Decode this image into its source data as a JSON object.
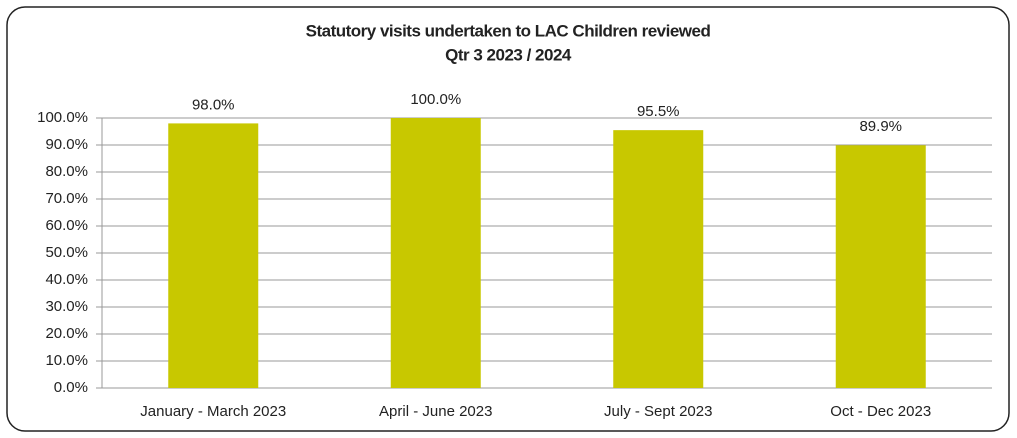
{
  "chart_data": {
    "type": "bar",
    "title": [
      "Statutory visits undertaken to LAC Children reviewed",
      "Qtr  3 2023 / 2024"
    ],
    "categories": [
      "January - March 2023",
      "April - June 2023",
      "July - Sept 2023",
      "Oct - Dec 2023"
    ],
    "values": [
      98,
      100,
      95.5,
      89.9
    ],
    "value_labels": [
      "98.0%",
      "100.0%",
      "95.5%",
      "89.9%"
    ],
    "color": "#c8c800",
    "ylim": [
      0,
      100
    ],
    "yticks": [
      {
        "value": 0,
        "label": "0.0%"
      },
      {
        "value": 10,
        "label": "10.0%"
      },
      {
        "value": 20,
        "label": "20.0%"
      },
      {
        "value": 30,
        "label": "30.0%"
      },
      {
        "value": 40,
        "label": "40.0%"
      },
      {
        "value": 50,
        "label": "50.0%"
      },
      {
        "value": 60,
        "label": "60.0%"
      },
      {
        "value": 70,
        "label": "70.0%"
      },
      {
        "value": 80,
        "label": "80.0%"
      },
      {
        "value": 90,
        "label": "90.0%"
      },
      {
        "value": 100,
        "label": "100.0%"
      }
    ],
    "grid": true
  }
}
